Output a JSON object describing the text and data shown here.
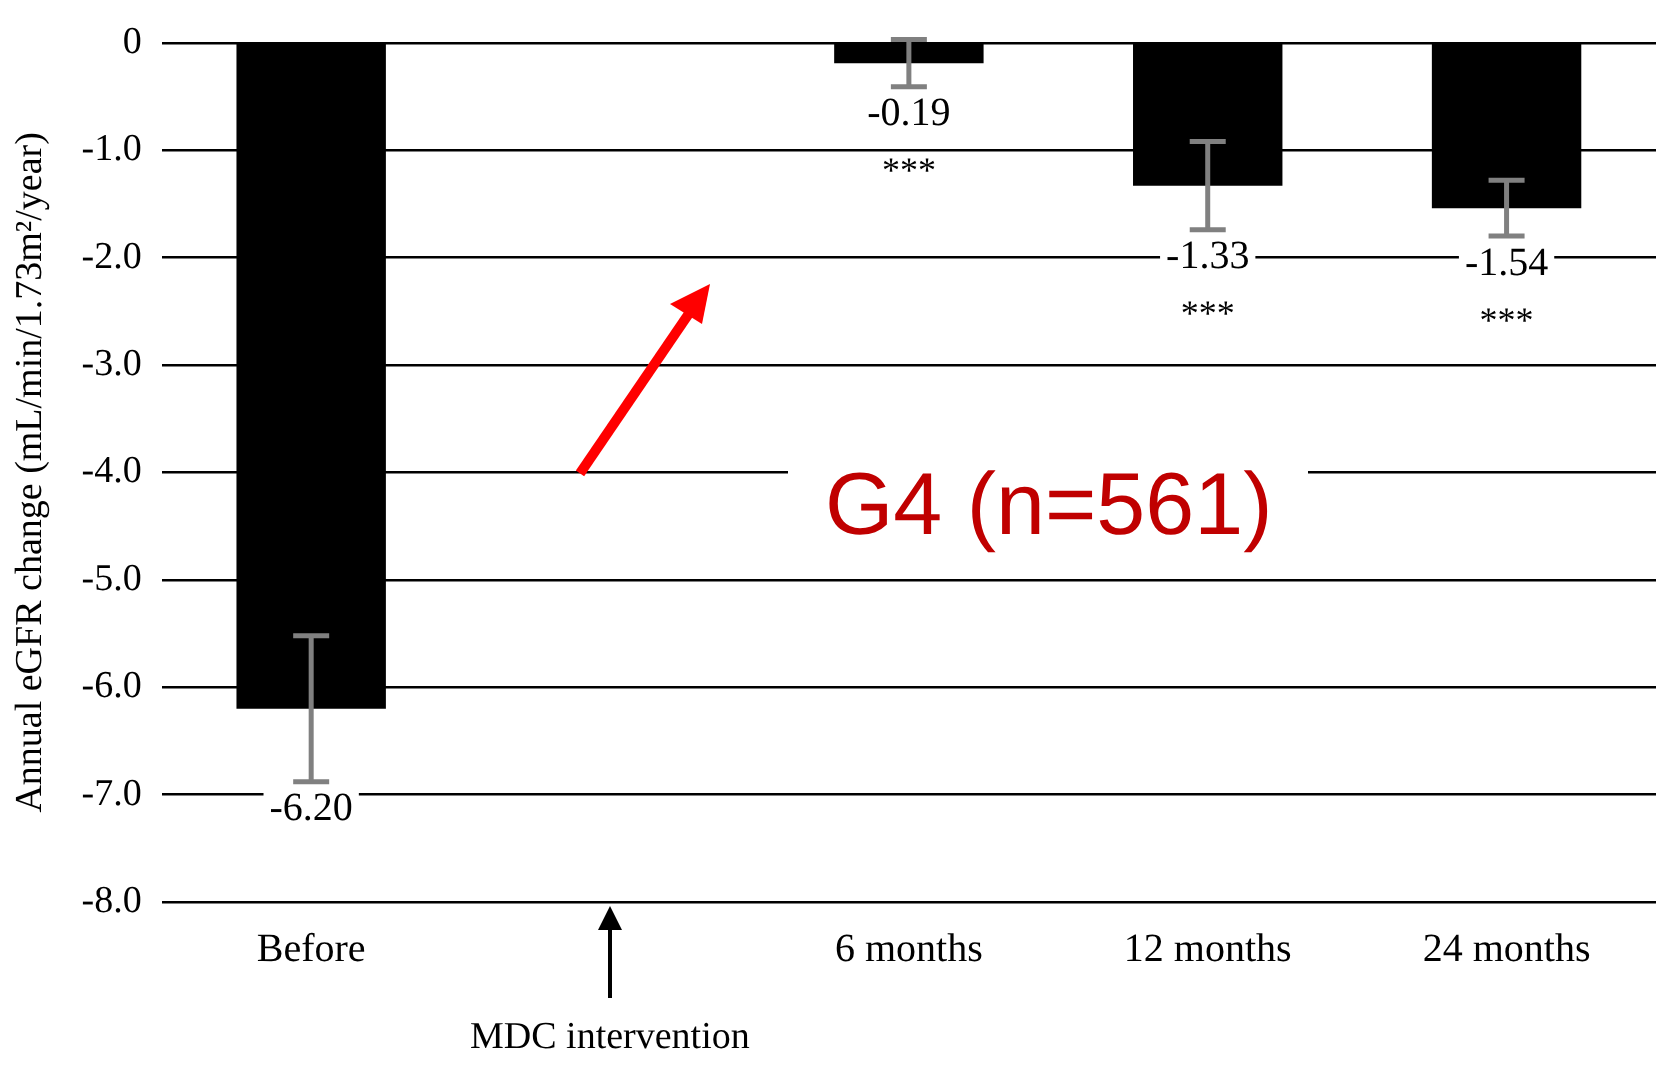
{
  "chart_data": {
    "type": "bar",
    "ylabel": "Annual eGFR change (mL/min/1.73m²/year)",
    "categories": [
      "Before",
      null,
      "6 months",
      "12 months",
      "24 months"
    ],
    "values": [
      -6.2,
      null,
      -0.19,
      -1.33,
      -1.54
    ],
    "errors": [
      0.68,
      null,
      0.22,
      0.41,
      0.26
    ],
    "color": "#000000",
    "value_labels": [
      "-6.20",
      null,
      "-0.19",
      "-1.33",
      "-1.54"
    ],
    "ylim": [
      -8,
      0
    ],
    "yticks": [
      {
        "value": 0,
        "label": "0"
      },
      {
        "value": -1,
        "label": "-1.0"
      },
      {
        "value": -2,
        "label": "-2.0"
      },
      {
        "value": -3,
        "label": "-3.0"
      },
      {
        "value": -4,
        "label": "-4.0"
      },
      {
        "value": -5,
        "label": "-5.0"
      },
      {
        "value": -6,
        "label": "-6.0"
      },
      {
        "value": -7,
        "label": "-7.0"
      },
      {
        "value": -8,
        "label": "-8.0"
      }
    ],
    "grid": "y",
    "legend": false,
    "annotations": [
      "***",
      "***",
      "***",
      "G4 (n=561)",
      "MDC intervention"
    ]
  }
}
